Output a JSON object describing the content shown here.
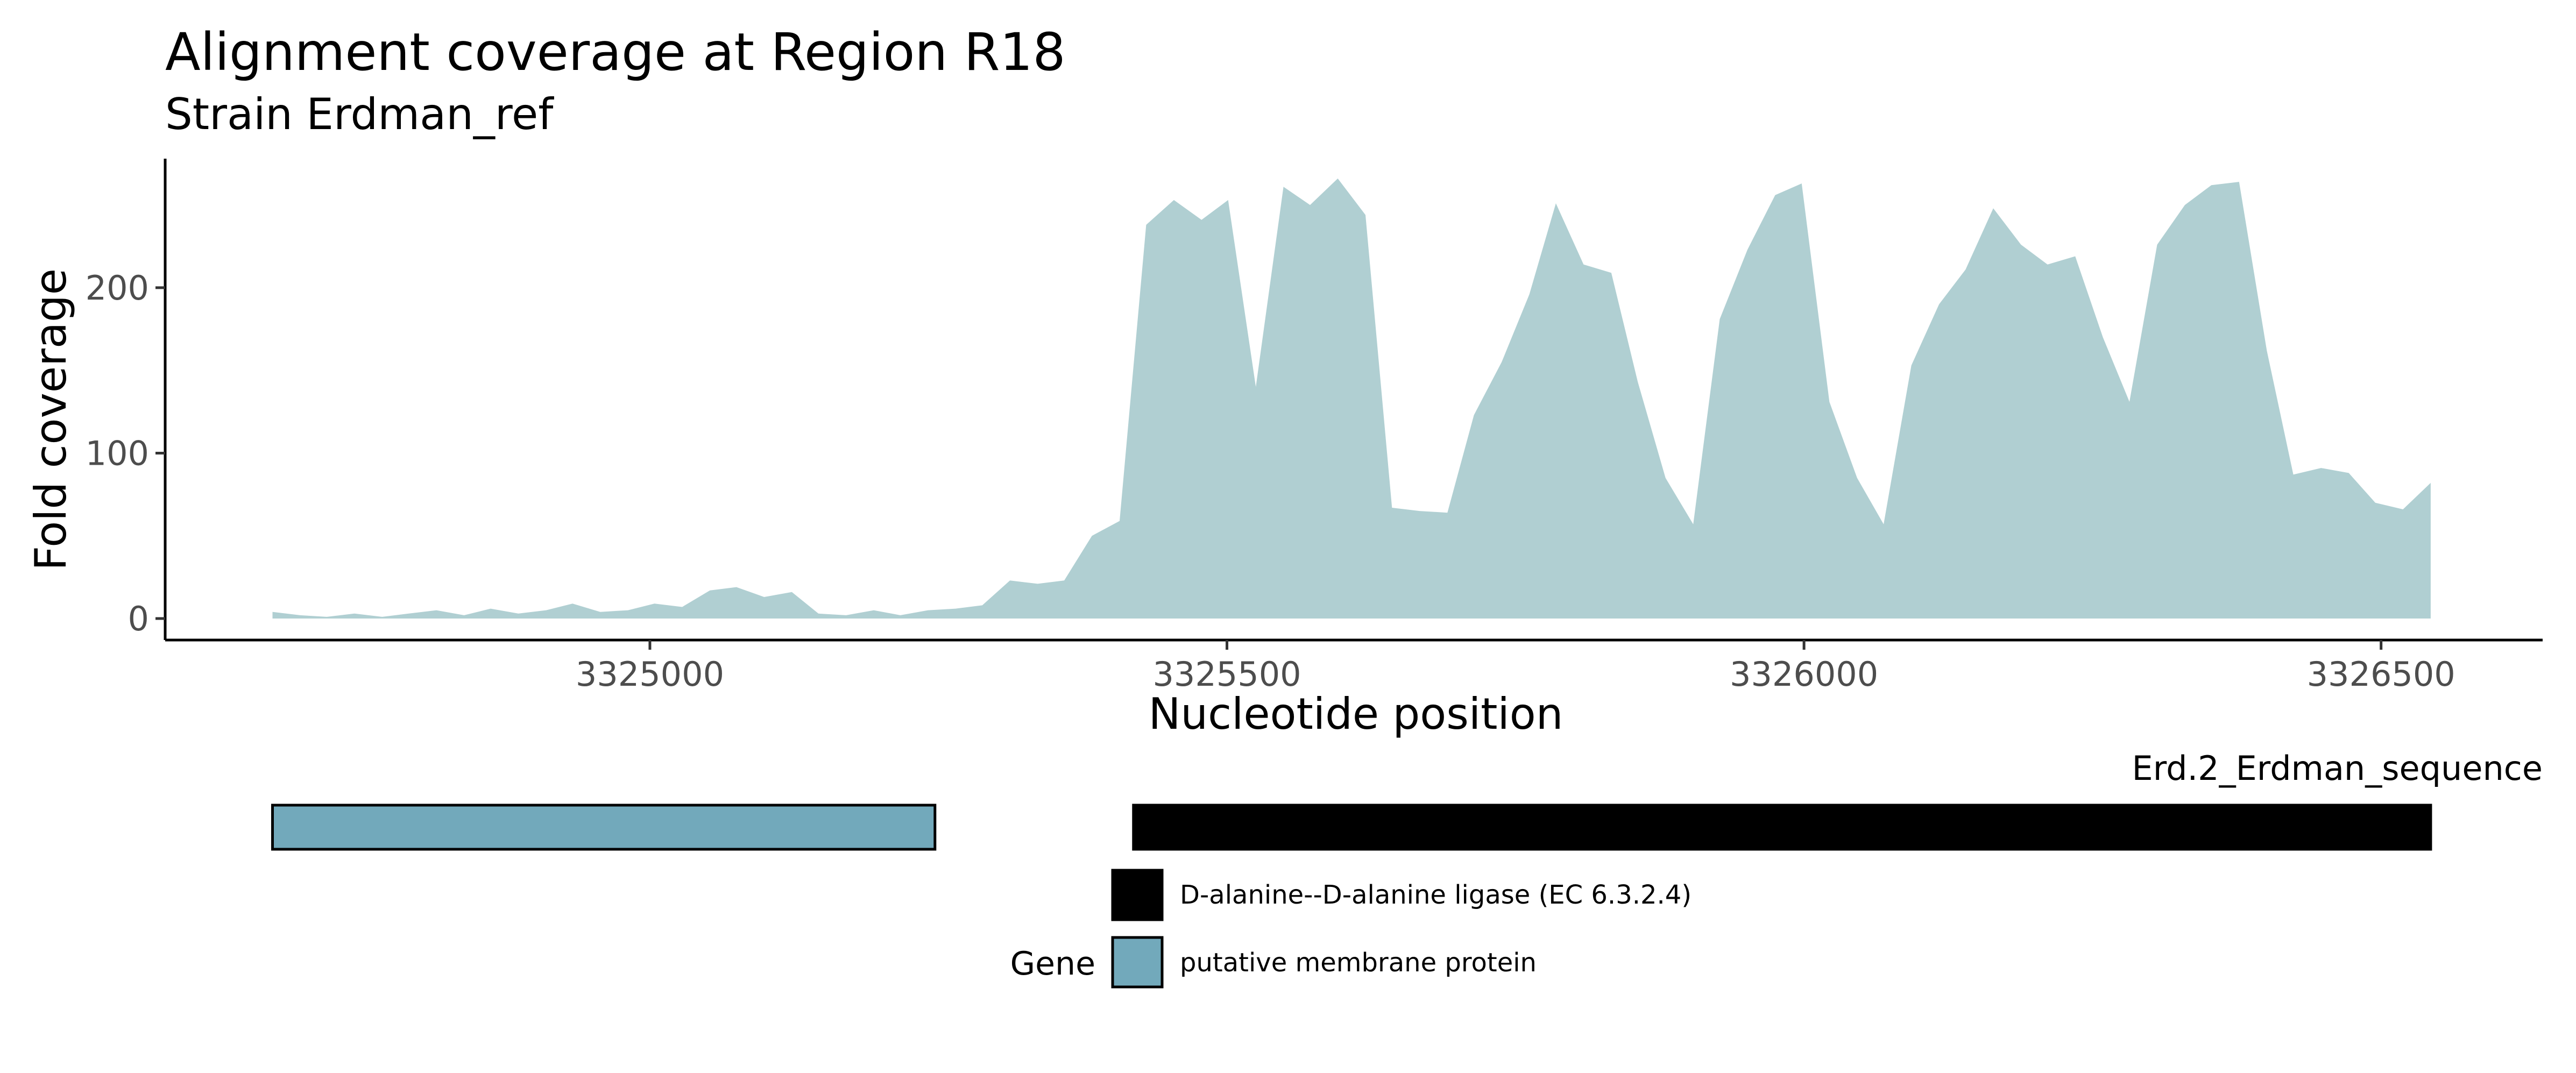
{
  "title": "Alignment coverage at Region R18",
  "subtitle": "Strain Erdman_ref",
  "colors": {
    "coverage_fill": "#b0cfd2",
    "axis": "#000000",
    "tick_text": "#4d4d4d",
    "gene_ligase": "#000000",
    "gene_membrane": "#72a9bb"
  },
  "chart_data": {
    "type": "area",
    "title": "Alignment coverage at Region R18",
    "subtitle": "Strain Erdman_ref",
    "xlabel": "Nucleotide position",
    "ylabel": "Fold coverage",
    "xlim": [
      3324580,
      3326640
    ],
    "ylim": [
      -13,
      278
    ],
    "x_ticks": [
      3325000,
      3325500,
      3326000,
      3326500
    ],
    "x_tick_labels": [
      "3325000",
      "3325500",
      "3326000",
      "3326500"
    ],
    "y_ticks": [
      0,
      100,
      200
    ],
    "y_tick_labels": [
      "0",
      "100",
      "200"
    ],
    "grid": false,
    "x": [
      3324673,
      3324697,
      3324720,
      3324744,
      3324768,
      3324791,
      3324815,
      3324839,
      3324862,
      3324886,
      3324910,
      3324933,
      3324957,
      3324981,
      3325004,
      3325028,
      3325052,
      3325075,
      3325099,
      3325123,
      3325146,
      3325170,
      3325194,
      3325217,
      3325241,
      3325265,
      3325288,
      3325312,
      3325336,
      3325359,
      3325383,
      3325407,
      3325430,
      3325454,
      3325478,
      3325501,
      3325525,
      3325549,
      3325572,
      3325596,
      3325620,
      3325643,
      3325667,
      3325691,
      3325714,
      3325738,
      3325762,
      3325785,
      3325809,
      3325833,
      3325856,
      3325880,
      3325904,
      3325927,
      3325951,
      3325975,
      3325998,
      3326022,
      3326046,
      3326069,
      3326093,
      3326117,
      3326140,
      3326164,
      3326188,
      3326211,
      3326235,
      3326259,
      3326282,
      3326306,
      3326330,
      3326353,
      3326377,
      3326401,
      3326424,
      3326448,
      3326472,
      3326495,
      3326519,
      3326543
    ],
    "series": [
      {
        "values": [
          4,
          2,
          1,
          3,
          1,
          3,
          5,
          2,
          6,
          3,
          5,
          9,
          4,
          5,
          9,
          7,
          17,
          19,
          13,
          16,
          3,
          2,
          5,
          2,
          5,
          6,
          8,
          23,
          21,
          23,
          50,
          59,
          238,
          253,
          241,
          253,
          140,
          261,
          250,
          266,
          244,
          67,
          65,
          64,
          123,
          155,
          196,
          251,
          214,
          209,
          143,
          85,
          57,
          181,
          223,
          256,
          263,
          131,
          85,
          57,
          153,
          190,
          211,
          248,
          226,
          214,
          219,
          170,
          131,
          226,
          250,
          262,
          264,
          162,
          87,
          91,
          88,
          70,
          66,
          82
        ]
      }
    ],
    "gene_track": {
      "label": "Erd.2_Erdman_sequence",
      "genes": [
        {
          "name": "putative membrane protein",
          "start": 3324673,
          "end": 3325247
        },
        {
          "name": "D-alanine--D-alanine ligase (EC 6.3.2.4)",
          "start": 3325419,
          "end": 3326543
        }
      ]
    },
    "legend": {
      "title": "Gene",
      "position": "bottom",
      "entries": [
        "D-alanine--D-alanine ligase (EC 6.3.2.4)",
        "putative membrane protein"
      ]
    }
  }
}
